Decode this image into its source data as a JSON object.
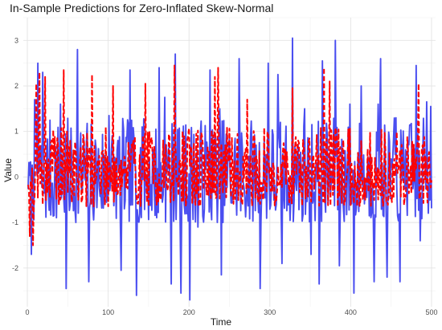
{
  "chart_data": {
    "type": "line",
    "title": "In-Sample Predictions for Zero-Inflated Skew-Normal",
    "xlabel": "Time",
    "ylabel": "Value",
    "xlim": [
      -5,
      505
    ],
    "ylim": [
      -2.85,
      3.5
    ],
    "x_ticks": [
      0,
      100,
      200,
      300,
      400,
      500
    ],
    "y_ticks": [
      -2,
      -1,
      0,
      1,
      2,
      3
    ],
    "grid": true,
    "legend": "none",
    "x_start": 1,
    "x_end": 500,
    "series": [
      {
        "style": "solid",
        "color": "#4a4ef0",
        "seed": 7,
        "typical_range": [
          -1.0,
          1.3
        ],
        "peaks": [
          [
            5,
            -1.7
          ],
          [
            9,
            1.7
          ],
          [
            13,
            2.5
          ],
          [
            19,
            2.3
          ],
          [
            41,
            1.6
          ],
          [
            48,
            -2.45
          ],
          [
            62,
            2.8
          ],
          [
            76,
            -2.3
          ],
          [
            101,
            1.35
          ],
          [
            116,
            -2.05
          ],
          [
            127,
            2.35
          ],
          [
            135,
            -2.6
          ],
          [
            142,
            1.1
          ],
          [
            163,
            2.4
          ],
          [
            170,
            1.75
          ],
          [
            178,
            -2.35
          ],
          [
            183,
            2.7
          ],
          [
            190,
            -2.55
          ],
          [
            201,
            -2.7
          ],
          [
            211,
            -1.1
          ],
          [
            226,
            2.35
          ],
          [
            238,
            1.5
          ],
          [
            240,
            -2.15
          ],
          [
            262,
            2.6
          ],
          [
            288,
            -2.45
          ],
          [
            298,
            2.5
          ],
          [
            310,
            2.25
          ],
          [
            315,
            -1.9
          ],
          [
            328,
            3.05
          ],
          [
            343,
            1.5
          ],
          [
            351,
            -1.7
          ],
          [
            365,
            2.55
          ],
          [
            361,
            -2.35
          ],
          [
            381,
            3.0
          ],
          [
            386,
            -1.95
          ],
          [
            399,
            1.6
          ],
          [
            404,
            -2.55
          ],
          [
            413,
            2.0
          ],
          [
            429,
            -2.3
          ],
          [
            434,
            1.6
          ],
          [
            437,
            2.6
          ],
          [
            445,
            -2.2
          ],
          [
            456,
            1.3
          ],
          [
            461,
            -2.3
          ],
          [
            468,
            0.6
          ],
          [
            481,
            2.45
          ],
          [
            486,
            -1.4
          ],
          [
            494,
            1.65
          ],
          [
            499,
            1.55
          ]
        ]
      },
      {
        "style": "dashed",
        "color": "#ff0000",
        "seed": 19,
        "typical_range": [
          -0.65,
          1.1
        ],
        "peaks": [
          [
            3,
            -1.3
          ],
          [
            7,
            -1.5
          ],
          [
            11,
            2.05
          ],
          [
            15,
            2.3
          ],
          [
            22,
            2.2
          ],
          [
            45,
            2.35
          ],
          [
            80,
            2.25
          ],
          [
            106,
            2.0
          ],
          [
            146,
            2.05
          ],
          [
            182,
            2.45
          ],
          [
            232,
            2.2
          ],
          [
            236,
            2.4
          ],
          [
            272,
            1.7
          ],
          [
            328,
            1.95
          ],
          [
            367,
            2.4
          ],
          [
            374,
            2.1
          ],
          [
            484,
            2.05
          ]
        ]
      }
    ]
  }
}
